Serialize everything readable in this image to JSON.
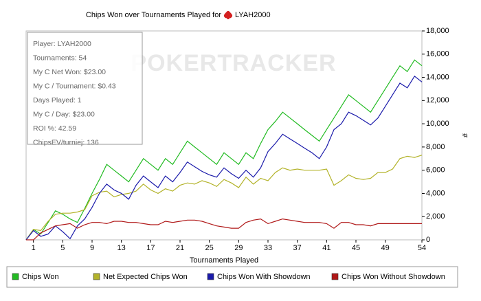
{
  "chart_data": {
    "type": "line",
    "title": "Chips Won over Tournaments Played for",
    "player": "LYAH2000",
    "watermark": "POKERTRACKER",
    "info": [
      "Player: LYAH2000",
      "Tournaments: 54",
      "My C Net Won: $23.00",
      "My C / Tournament: $0.43",
      "Days Played: 1",
      "My C / Day: $23.00",
      "ROI %: 42.59",
      "ChipsEV/turniej: 136"
    ],
    "x_label": "Tournaments Played",
    "y_label": "#",
    "x": [
      0,
      1,
      2,
      3,
      4,
      5,
      6,
      7,
      8,
      9,
      10,
      11,
      12,
      13,
      14,
      15,
      16,
      17,
      18,
      19,
      20,
      21,
      22,
      23,
      24,
      25,
      26,
      27,
      28,
      29,
      30,
      31,
      32,
      33,
      34,
      35,
      36,
      37,
      38,
      39,
      40,
      41,
      42,
      43,
      44,
      45,
      46,
      47,
      48,
      49,
      50,
      51,
      52,
      53,
      54
    ],
    "series": [
      {
        "name": "Chips Won",
        "color": "#22bb22",
        "values": [
          0,
          900,
          500,
          1500,
          2500,
          2200,
          1800,
          1500,
          2700,
          4000,
          5200,
          6500,
          6000,
          5500,
          5000,
          6000,
          7000,
          6500,
          6000,
          7000,
          6500,
          7500,
          8500,
          8000,
          7500,
          7000,
          6500,
          7500,
          7000,
          6500,
          7500,
          7000,
          8300,
          9500,
          10200,
          11000,
          10500,
          10000,
          9500,
          9000,
          8500,
          9500,
          10500,
          11500,
          12500,
          12000,
          11500,
          11000,
          12000,
          13000,
          14000,
          15000,
          14500,
          15500,
          15000
        ]
      },
      {
        "name": "Net Expected Chips Won",
        "color": "#b3b32a",
        "values": [
          0,
          900,
          800,
          1600,
          2200,
          2300,
          2300,
          2400,
          2600,
          3800,
          4100,
          4200,
          3700,
          3900,
          4000,
          4200,
          4800,
          4300,
          4000,
          4400,
          4200,
          4700,
          4900,
          4800,
          5100,
          4900,
          4600,
          5200,
          4900,
          4500,
          5400,
          4800,
          5300,
          5100,
          5800,
          6200,
          6000,
          6100,
          6000,
          6000,
          6000,
          6100,
          4700,
          5100,
          5600,
          5300,
          5200,
          5300,
          5800,
          5800,
          6100,
          7000,
          7200,
          7100,
          7300
        ]
      },
      {
        "name": "Chips Won With Showdown",
        "color": "#1a1aaa",
        "values": [
          0,
          800,
          300,
          500,
          1200,
          700,
          100,
          1200,
          1800,
          2800,
          4000,
          4800,
          4300,
          4000,
          3500,
          4700,
          5500,
          5000,
          4500,
          5500,
          5000,
          5800,
          6700,
          6300,
          5900,
          5600,
          5400,
          6200,
          5700,
          5300,
          6000,
          5400,
          6200,
          7600,
          8300,
          9100,
          8700,
          8300,
          7900,
          7500,
          7000,
          8000,
          9500,
          10000,
          11000,
          10700,
          10300,
          9900,
          10500,
          11500,
          12500,
          13500,
          13100,
          14100,
          13600
        ]
      },
      {
        "name": "Chips Won Without Showdown",
        "color": "#b01818",
        "values": [
          0,
          0,
          600,
          900,
          1200,
          1300,
          1400,
          1000,
          1300,
          1500,
          1500,
          1400,
          1600,
          1600,
          1500,
          1500,
          1400,
          1300,
          1300,
          1600,
          1500,
          1600,
          1700,
          1700,
          1600,
          1400,
          1200,
          1100,
          1000,
          1000,
          1500,
          1700,
          1800,
          1400,
          1600,
          1800,
          1700,
          1600,
          1500,
          1500,
          1500,
          1400,
          1000,
          1500,
          1500,
          1300,
          1300,
          1200,
          1400,
          1400,
          1400,
          1400,
          1400,
          1400,
          1400
        ]
      }
    ],
    "xlim": [
      0,
      54
    ],
    "xticks": [
      1,
      5,
      9,
      13,
      17,
      21,
      25,
      29,
      33,
      37,
      41,
      45,
      49,
      54
    ],
    "ylim": [
      0,
      18000
    ],
    "yticks": [
      0,
      {
        "value": 2000,
        "label": "2,000"
      },
      {
        "value": 4000,
        "label": "4,000"
      },
      {
        "value": 6000,
        "label": "6,000"
      },
      {
        "value": 8000,
        "label": "8,000"
      },
      {
        "value": 10000,
        "label": "10,000"
      },
      {
        "value": 12000,
        "label": "12,000"
      },
      {
        "value": 14000,
        "label": "14,000"
      },
      {
        "value": 16000,
        "label": "16,000"
      },
      {
        "value": 18000,
        "label": "18,000"
      }
    ],
    "legend": "bottom"
  }
}
